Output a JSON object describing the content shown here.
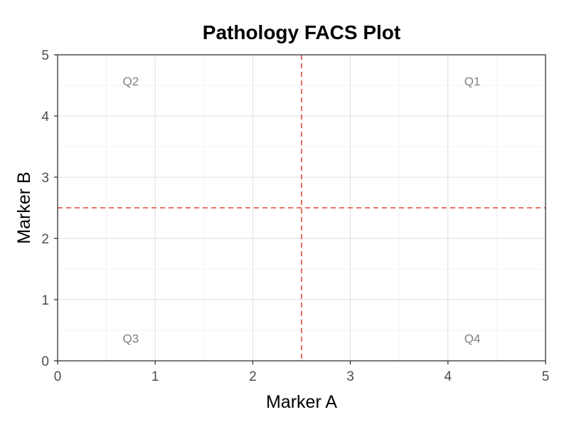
{
  "chart_data": {
    "type": "scatter",
    "title": "Pathology FACS Plot",
    "xlabel": "Marker A",
    "ylabel": "Marker B",
    "xlim": [
      0,
      5
    ],
    "ylim": [
      0,
      5
    ],
    "xticks": [
      0,
      1,
      2,
      3,
      4,
      5
    ],
    "yticks": [
      0,
      1,
      2,
      3,
      4,
      5
    ],
    "grid": true,
    "series": [],
    "thresholds": {
      "x": 2.5,
      "y": 2.5,
      "color": "#e8473a",
      "style": "dashed"
    },
    "quadrant_labels": [
      {
        "text": "Q1",
        "x": 4.25,
        "y": 4.55
      },
      {
        "text": "Q2",
        "x": 0.75,
        "y": 4.55
      },
      {
        "text": "Q3",
        "x": 0.75,
        "y": 0.35
      },
      {
        "text": "Q4",
        "x": 4.25,
        "y": 0.35
      }
    ]
  }
}
